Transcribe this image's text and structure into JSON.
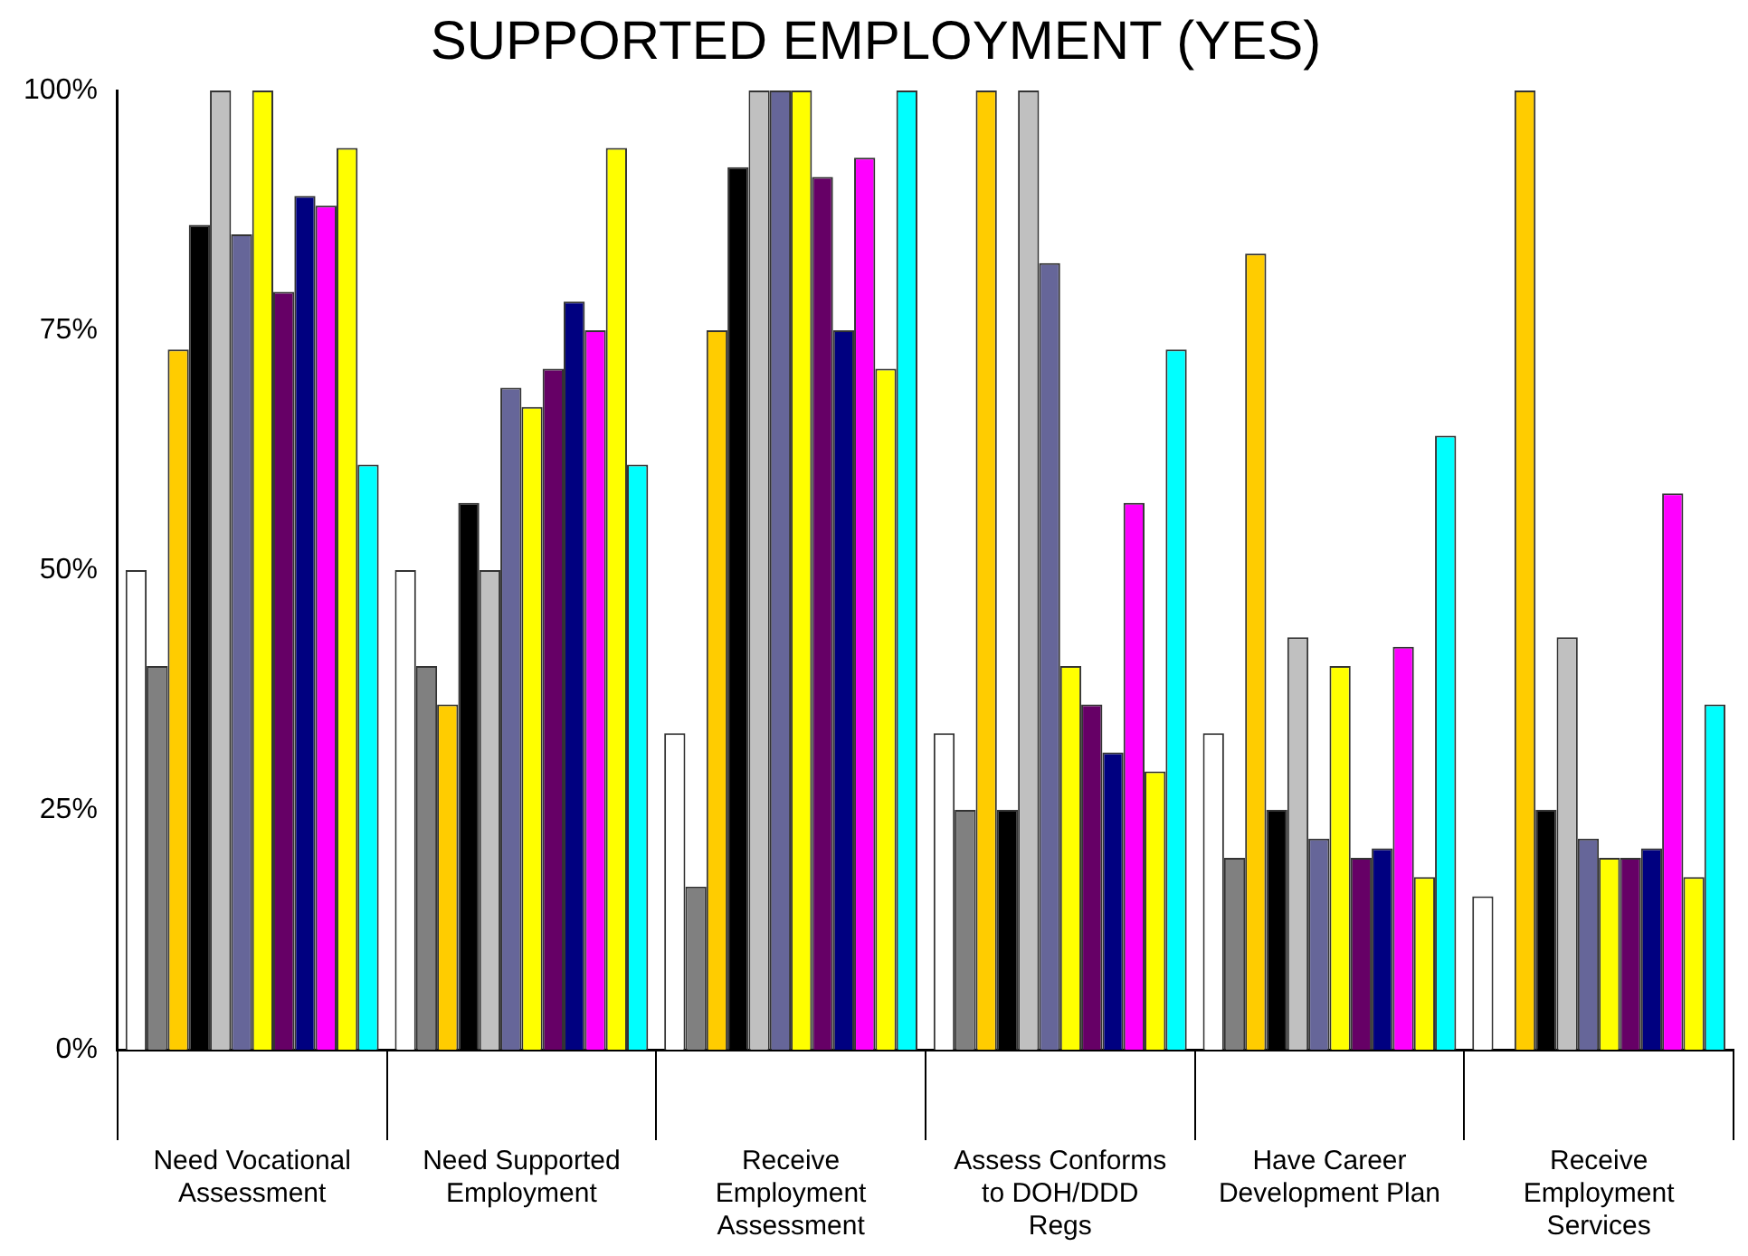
{
  "chart_data": {
    "type": "bar",
    "title": "SUPPORTED EMPLOYMENT (YES)",
    "categories": [
      "Need Vocational Assessment",
      "Need Supported Employment",
      "Receive Employment Assessment",
      "Assess Conforms to DOH/DDD Regs",
      "Have Career Development Plan",
      "Receive Employment Services"
    ],
    "series": [
      {
        "color": "#ffffff",
        "values": [
          50,
          50,
          33,
          33,
          33,
          16
        ]
      },
      {
        "color": "#808080",
        "values": [
          40,
          40,
          17,
          25,
          20,
          null
        ]
      },
      {
        "color": "#ffcc00",
        "values": [
          73,
          36,
          75,
          100,
          83,
          100
        ]
      },
      {
        "color": "#000000",
        "values": [
          86,
          57,
          92,
          25,
          25,
          25
        ]
      },
      {
        "color": "#c0c0c0",
        "values": [
          100,
          50,
          100,
          100,
          43,
          43
        ]
      },
      {
        "color": "#666699",
        "values": [
          85,
          69,
          100,
          82,
          22,
          22
        ]
      },
      {
        "color": "#ffff00",
        "values": [
          100,
          67,
          100,
          40,
          40,
          20
        ]
      },
      {
        "color": "#660066",
        "values": [
          79,
          71,
          91,
          36,
          20,
          20
        ]
      },
      {
        "color": "#000080",
        "values": [
          89,
          78,
          75,
          31,
          21,
          21
        ]
      },
      {
        "color": "#ff00ff",
        "values": [
          88,
          75,
          93,
          57,
          42,
          58
        ]
      },
      {
        "color": "#ffff00",
        "values": [
          94,
          94,
          71,
          29,
          18,
          18
        ]
      },
      {
        "color": "#00ffff",
        "values": [
          61,
          61,
          100,
          73,
          64,
          36
        ]
      }
    ],
    "ylim": [
      0,
      100
    ],
    "yticks": [
      {
        "value": 0,
        "label": "0%"
      },
      {
        "value": 25,
        "label": "25%"
      },
      {
        "value": 50,
        "label": "50%"
      },
      {
        "value": 75,
        "label": "75%"
      },
      {
        "value": 100,
        "label": "100%"
      }
    ],
    "grid": false,
    "legend": false
  }
}
